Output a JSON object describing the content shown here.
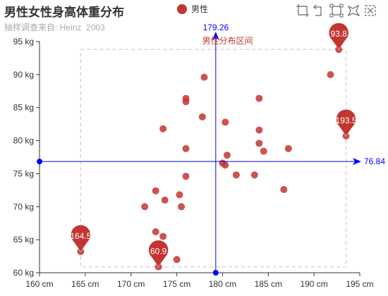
{
  "chart_data": {
    "type": "scatter",
    "title": "男性女性身高体重分布",
    "subtitle": "抽样调查来自: Heinz  2003",
    "series": [
      {
        "name": "男性",
        "color": "#c23531",
        "points": [
          [
            164.5,
            63.2
          ],
          [
            173.0,
            60.9
          ],
          [
            172.7,
            66.2
          ],
          [
            173.5,
            65.5
          ],
          [
            175.0,
            62.0
          ],
          [
            171.5,
            70.0
          ],
          [
            172.7,
            72.4
          ],
          [
            173.7,
            71.0
          ],
          [
            175.5,
            70.0
          ],
          [
            175.3,
            71.8
          ],
          [
            176.0,
            74.6
          ],
          [
            176.0,
            78.8
          ],
          [
            173.5,
            81.8
          ],
          [
            177.8,
            83.6
          ],
          [
            176.0,
            85.9
          ],
          [
            176.0,
            86.4
          ],
          [
            178.0,
            89.6
          ],
          [
            180.0,
            76.6
          ],
          [
            180.3,
            76.3
          ],
          [
            180.5,
            77.8
          ],
          [
            180.3,
            82.8
          ],
          [
            181.5,
            74.8
          ],
          [
            183.5,
            74.8
          ],
          [
            184.0,
            79.6
          ],
          [
            184.0,
            81.6
          ],
          [
            184.5,
            78.4
          ],
          [
            184.0,
            86.4
          ],
          [
            186.7,
            72.6
          ],
          [
            187.2,
            78.8
          ],
          [
            191.8,
            90.0
          ],
          [
            192.7,
            93.8
          ],
          [
            193.5,
            80.7
          ]
        ]
      }
    ],
    "axis_labels": {
      "x": [
        "160 cm",
        "165 cm",
        "170 cm",
        "175 cm",
        "180 cm",
        "185 cm",
        "190 cm",
        "195 cm"
      ],
      "y": [
        "60 kg",
        "65 kg",
        "70 kg",
        "75 kg",
        "80 kg",
        "85 kg",
        "90 kg",
        "95 kg"
      ]
    },
    "xlim": [
      160,
      195
    ],
    "ylim": [
      60,
      95
    ],
    "grid": false,
    "legend_position": "top-center",
    "mark_points": [
      {
        "label": "93.8",
        "x": 192.7,
        "y": 93.8
      },
      {
        "label": "193.5",
        "x": 193.5,
        "y": 80.7
      },
      {
        "label": "164.5",
        "x": 164.5,
        "y": 63.2
      },
      {
        "label": "60.9",
        "x": 173.0,
        "y": 60.9
      }
    ],
    "mark_area": {
      "label": "男性分布区间",
      "x": [
        164.5,
        193.5
      ],
      "y": [
        60.9,
        93.8
      ]
    },
    "mark_lines": [
      {
        "axis": "x",
        "value": 179.26,
        "label": "179.26"
      },
      {
        "axis": "y",
        "value": 76.84,
        "label": "76.84"
      }
    ],
    "mark_line_color": "#0000ff"
  },
  "toolbox": {
    "icons": [
      "zoom-icon",
      "zoom-reset-icon",
      "rect-select-icon",
      "lasso-select-icon",
      "clear-select-icon"
    ]
  }
}
